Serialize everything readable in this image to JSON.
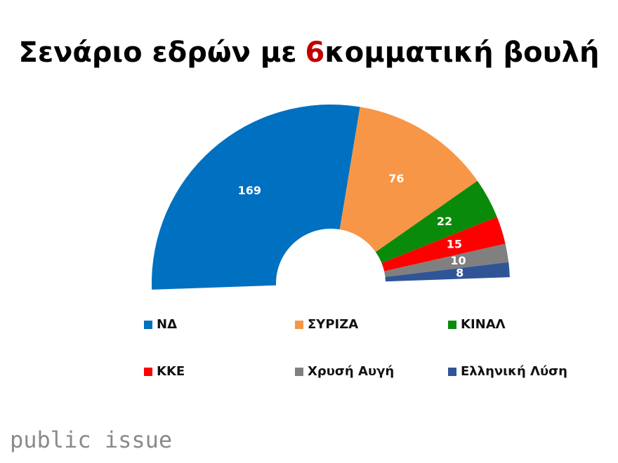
{
  "chart_data": {
    "type": "half-donut",
    "title": "Σενάριο εδρών με",
    "title_highlight": "6",
    "title_end": "κομματική βουλή",
    "categories": [
      "ΝΔ",
      "ΣΥΡΙΖΑ",
      "ΚΙΝΑΛ",
      "ΚΚΕ",
      "Χρυσή Αυγή",
      "Ελληνική Λύση"
    ],
    "values": [
      169,
      76,
      22,
      15,
      10,
      8
    ],
    "colors": [
      "#0070c0",
      "#f79646",
      "#0a8a0a",
      "#ff0000",
      "#808080",
      "#2f5597"
    ],
    "legend": "bottom"
  },
  "footer": "public issue"
}
